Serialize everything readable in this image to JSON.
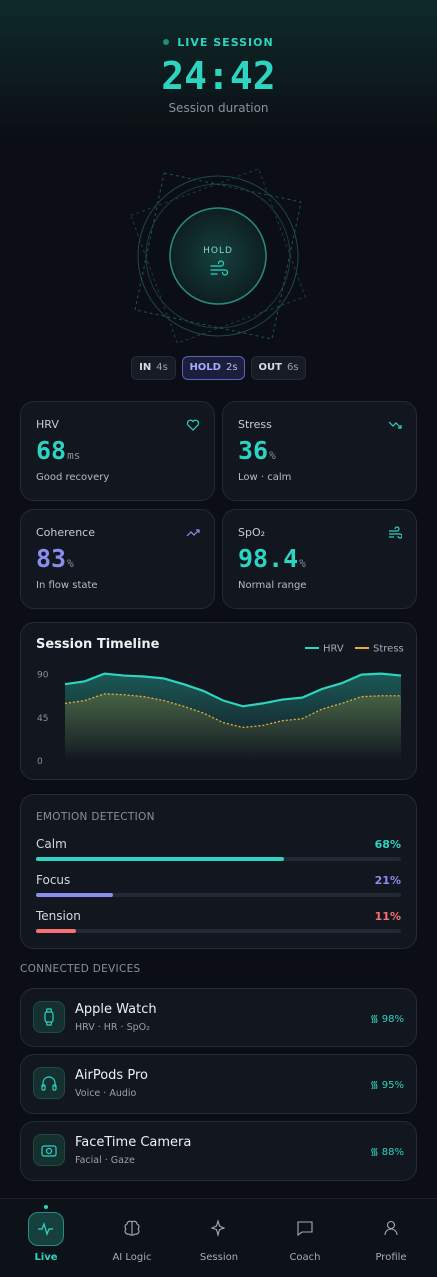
{
  "session": {
    "status": "LIVE SESSION",
    "time": "24:42",
    "caption": "Session duration"
  },
  "breath": {
    "label": "HOLD",
    "phases": [
      {
        "name": "IN",
        "duration": "4s"
      },
      {
        "name": "HOLD",
        "duration": "2s"
      },
      {
        "name": "OUT",
        "duration": "6s"
      }
    ]
  },
  "metrics": [
    {
      "label": "HRV",
      "value": "68",
      "unit": "ms",
      "note": "Good recovery"
    },
    {
      "label": "Stress",
      "value": "36",
      "unit": "%",
      "note": "Low · calm"
    },
    {
      "label": "Coherence",
      "value": "83",
      "unit": "%",
      "note": "In flow state"
    },
    {
      "label": "SpO₂",
      "value": "98.4",
      "unit": "%",
      "note": "Normal range"
    }
  ],
  "timeline": {
    "type": "line",
    "title": "Session Timeline",
    "ylim": [
      0,
      100
    ],
    "yticks": [
      90,
      45,
      0
    ],
    "series": [
      {
        "name": "HRV",
        "color": "#2dd4bf",
        "values": [
          80,
          83,
          91,
          89,
          88,
          86,
          80,
          73,
          63,
          57,
          60,
          64,
          66,
          75,
          81,
          90,
          91,
          89
        ]
      },
      {
        "name": "Stress",
        "color": "#e3b234",
        "values": [
          60,
          63,
          70,
          69,
          67,
          63,
          57,
          50,
          40,
          35,
          37,
          42,
          44,
          54,
          60,
          67,
          68,
          68
        ]
      }
    ]
  },
  "emotions": {
    "title": "EMOTION DETECTION",
    "xlim": [
      0,
      100
    ],
    "items": [
      {
        "name": "Calm",
        "value": 68,
        "value_label": "68%",
        "color": "#2dd4bf"
      },
      {
        "name": "Focus",
        "value": 21,
        "value_label": "21%",
        "color": "#8b8cf0"
      },
      {
        "name": "Tension",
        "value": 11,
        "value_label": "11%",
        "color": "#f87171"
      }
    ]
  },
  "devices": {
    "title": "CONNECTED DEVICES",
    "items": [
      {
        "name": "Apple Watch",
        "detail": "HRV · HR · SpO₂",
        "signal": "98%"
      },
      {
        "name": "AirPods Pro",
        "detail": "Voice · Audio",
        "signal": "95%"
      },
      {
        "name": "FaceTime Camera",
        "detail": "Facial · Gaze",
        "signal": "88%"
      }
    ]
  },
  "nav": [
    "Live",
    "AI Logic",
    "Session",
    "Coach",
    "Profile"
  ]
}
